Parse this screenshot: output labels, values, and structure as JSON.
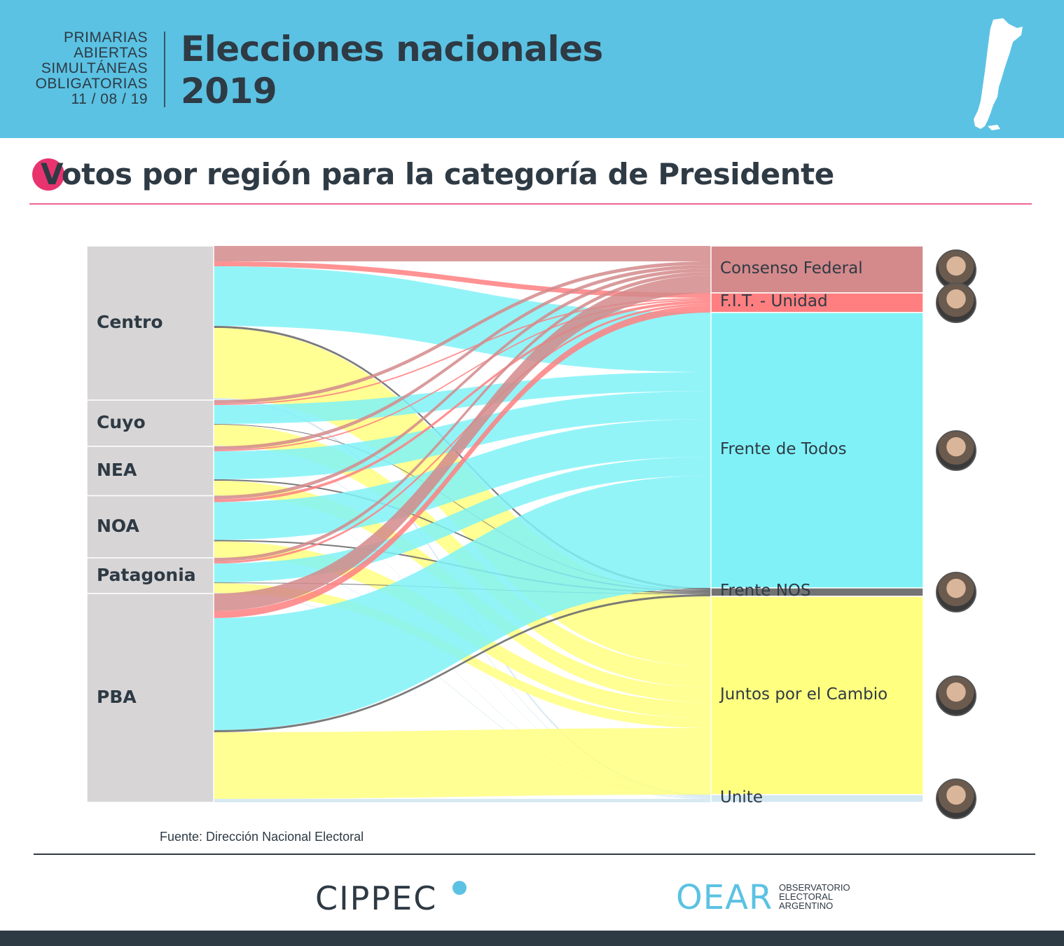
{
  "header": {
    "pre_label_lines": [
      "PRIMARIAS",
      "ABIERTAS",
      "SIMULTÁNEAS",
      "OBLIGATORIAS",
      "11 / 08 / 19"
    ],
    "title_line1": "Elecciones nacionales",
    "title_line2": "2019",
    "background": "#5bc2e3",
    "map_icon": "argentina-map-icon"
  },
  "section": {
    "title": "Votos por región para la categoría de Presidente",
    "accent": "#e8336f"
  },
  "chart_data": {
    "type": "sankey",
    "title": "Votos por región para la categoría de Presidente",
    "sources": [
      "Centro",
      "Cuyo",
      "NEA",
      "NOA",
      "Patagonia",
      "PBA"
    ],
    "targets": [
      "Consenso Federal",
      "F.I.T. - Unidad",
      "Frente de Todos",
      "Frente NOS",
      "Juntos por el Cambio",
      "Unite"
    ],
    "target_colors": {
      "Consenso Federal": "#d4898b",
      "F.I.T. - Unidad": "#ff7f80",
      "Frente de Todos": "#80f2f7",
      "Frente NOS": "#737373",
      "Juntos por el Cambio": "#ffff80",
      "Unite": "#d4e8f2"
    },
    "flows": [
      {
        "source": "Centro",
        "values": {
          "Consenso Federal": 22,
          "F.I.T. - Unidad": 7,
          "Frente de Todos": 85,
          "Frente NOS": 3,
          "Juntos por el Cambio": 100,
          "Unite": 3
        }
      },
      {
        "source": "Cuyo",
        "values": {
          "Consenso Federal": 5,
          "F.I.T. - Unidad": 2,
          "Frente de Todos": 27,
          "Frente NOS": 1,
          "Juntos por el Cambio": 30,
          "Unite": 1
        }
      },
      {
        "source": "NEA",
        "values": {
          "Consenso Federal": 5,
          "F.I.T. - Unidad": 2,
          "Frente de Todos": 40,
          "Frente NOS": 2,
          "Juntos por el Cambio": 21,
          "Unite": 0.5
        }
      },
      {
        "source": "NOA",
        "values": {
          "Consenso Federal": 5,
          "F.I.T. - Unidad": 4,
          "Frente de Todos": 54,
          "Frente NOS": 2,
          "Juntos por el Cambio": 23,
          "Unite": 0.7
        }
      },
      {
        "source": "Patagonia",
        "values": {
          "Consenso Federal": 5,
          "F.I.T. - Unidad": 3,
          "Frente de Todos": 27,
          "Frente NOS": 1,
          "Juntos por el Cambio": 14,
          "Unite": 0.8
        }
      },
      {
        "source": "PBA",
        "values": {
          "Consenso Federal": 25,
          "F.I.T. - Unidad": 10,
          "Frente de Todos": 160,
          "Frente NOS": 3,
          "Juntos por el Cambio": 95,
          "Unite": 5
        }
      }
    ]
  },
  "footer": {
    "source_note": "Fuente: Dirección Nacional Electoral",
    "logo_left": "CIPPEC",
    "logo_right": "OEAR",
    "logo_right_sub": [
      "OBSERVATORIO",
      "ELECTORAL",
      "ARGENTINO"
    ]
  }
}
